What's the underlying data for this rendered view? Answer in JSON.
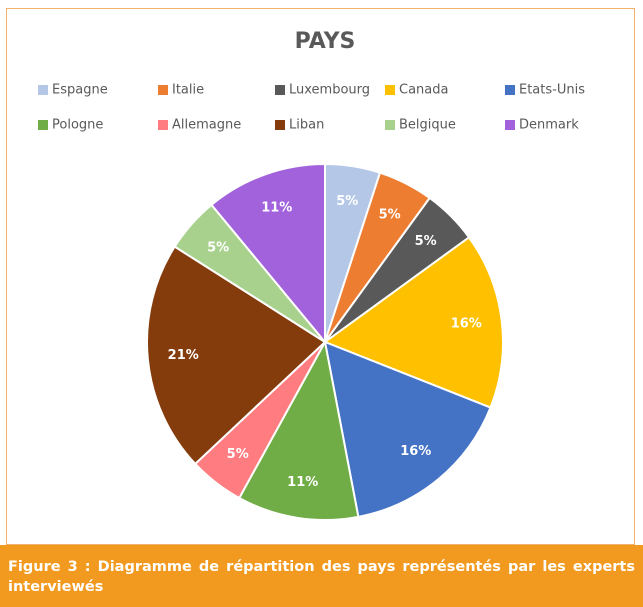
{
  "chart_data": {
    "type": "pie",
    "title": "PAYS",
    "categories": [
      "Espagne",
      "Italie",
      "Luxembourg",
      "Canada",
      "Etats-Unis",
      "Pologne",
      "Allemagne",
      "Liban",
      "Belgique",
      "Denmark"
    ],
    "values": [
      5,
      5,
      5,
      16,
      16,
      11,
      5,
      21,
      5,
      11
    ],
    "value_labels": [
      "5%",
      "5%",
      "5%",
      "16%",
      "16%",
      "11%",
      "5%",
      "21%",
      "5%",
      "11%"
    ],
    "colors": [
      "#b4c7e7",
      "#ed7d31",
      "#595959",
      "#ffc000",
      "#4472c4",
      "#70ad47",
      "#ff7c80",
      "#843c0c",
      "#a9d18e",
      "#a162dc"
    ],
    "legend": "top"
  },
  "caption": "Figure 3 : Diagramme de répartition des pays représentés par les experts interviewés"
}
